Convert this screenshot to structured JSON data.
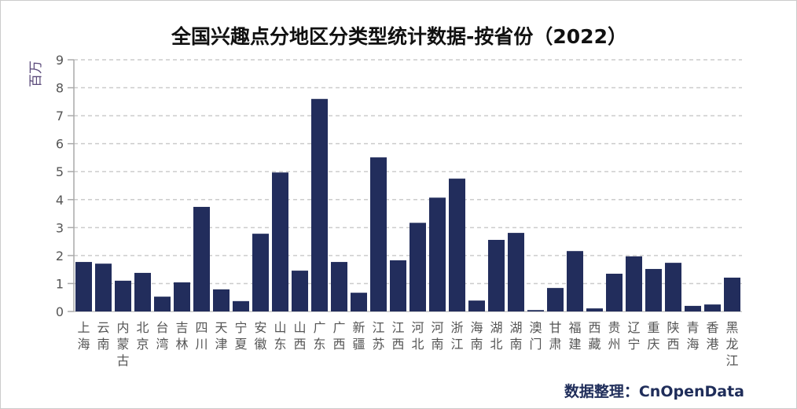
{
  "chart_data": {
    "type": "bar",
    "title": "全国兴趣点分地区分类型统计数据-按省份（2022）",
    "ylabel": "百万",
    "xlabel": "",
    "ylim": [
      0,
      9
    ],
    "yticks": [
      0,
      1,
      2,
      3,
      4,
      5,
      6,
      7,
      8,
      9
    ],
    "grid": true,
    "bar_color": "#222d5c",
    "source": "数据整理：CnOpenData",
    "categories": [
      "上海",
      "云南",
      "内蒙古",
      "北京",
      "台湾",
      "吉林",
      "四川",
      "天津",
      "宁夏",
      "安徽",
      "山东",
      "山西",
      "广东",
      "广西",
      "新疆",
      "江苏",
      "江西",
      "河北",
      "河南",
      "浙江",
      "海南",
      "湖北",
      "湖南",
      "澳门",
      "甘肃",
      "福建",
      "西藏",
      "贵州",
      "辽宁",
      "重庆",
      "陕西",
      "青海",
      "香港",
      "黑龙江"
    ],
    "values": [
      1.77,
      1.71,
      1.1,
      1.38,
      0.53,
      1.04,
      3.74,
      0.79,
      0.37,
      2.78,
      4.97,
      1.46,
      7.6,
      1.77,
      0.67,
      5.51,
      1.83,
      3.17,
      4.07,
      4.75,
      0.39,
      2.56,
      2.81,
      0.05,
      0.84,
      2.16,
      0.11,
      1.35,
      1.97,
      1.52,
      1.74,
      0.2,
      0.25,
      1.21
    ]
  }
}
